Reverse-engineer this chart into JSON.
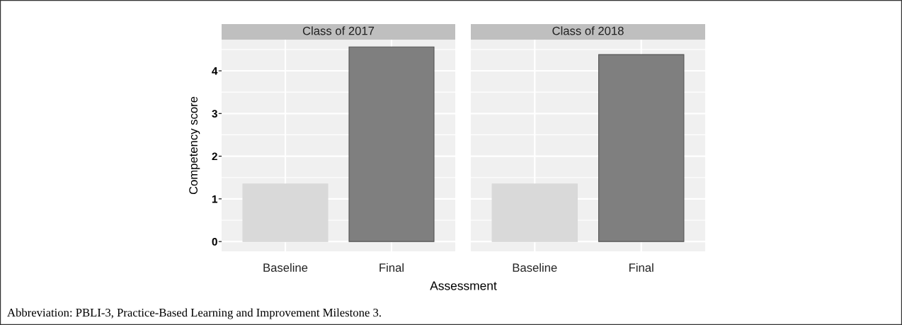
{
  "chart_data": [
    {
      "type": "bar",
      "title": "Class of 2017",
      "categories": [
        "Baseline",
        "Final"
      ],
      "values": [
        1.35,
        4.56
      ],
      "colors": [
        "#d9d9d9",
        "#7f7f7f"
      ],
      "ylim": [
        -0.23,
        4.73
      ],
      "yticks": [
        0,
        1,
        2,
        3,
        4
      ],
      "ylabel": "Competency score",
      "xlabel": "Assessment",
      "grid": true,
      "annotations": [
        "Abbreviation: PBLI-3, Practice-Based Learning and Improvement Milestone 3."
      ]
    },
    {
      "type": "bar",
      "title": "Class of 2018",
      "categories": [
        "Baseline",
        "Final"
      ],
      "values": [
        1.35,
        4.38
      ],
      "colors": [
        "#d9d9d9",
        "#7f7f7f"
      ],
      "ylim": [
        -0.23,
        4.73
      ],
      "yticks": [
        0,
        1,
        2,
        3,
        4
      ],
      "grid": true,
      "tick_labels": "x"
    }
  ]
}
